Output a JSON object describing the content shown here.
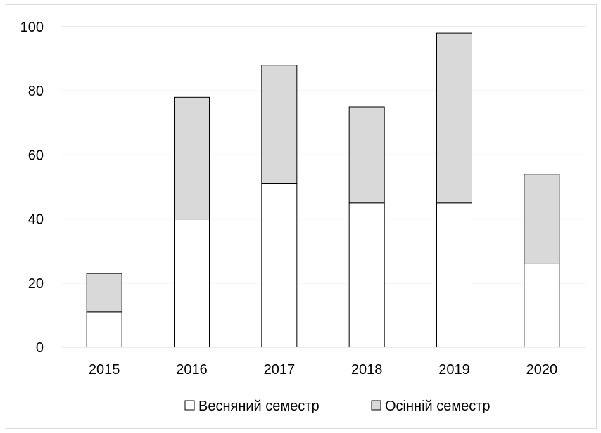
{
  "chart_data": {
    "type": "bar",
    "stacked": true,
    "categories": [
      "2015",
      "2016",
      "2017",
      "2018",
      "2019",
      "2020"
    ],
    "series": [
      {
        "name": "Весняний семестр",
        "values": [
          11,
          40,
          51,
          45,
          45,
          26
        ],
        "color": "#ffffff"
      },
      {
        "name": "Осінній семестр",
        "values": [
          12,
          38,
          37,
          30,
          53,
          28
        ],
        "color": "#d9d9d9"
      }
    ],
    "ylim": [
      0,
      100
    ],
    "yticks": [
      0,
      20,
      40,
      60,
      80,
      100
    ],
    "grid": true,
    "legend": "bottom",
    "colors": {
      "gridline": "#d9d9d9",
      "bar_stroke": "#000000",
      "frame": "#d9d9d9"
    }
  }
}
